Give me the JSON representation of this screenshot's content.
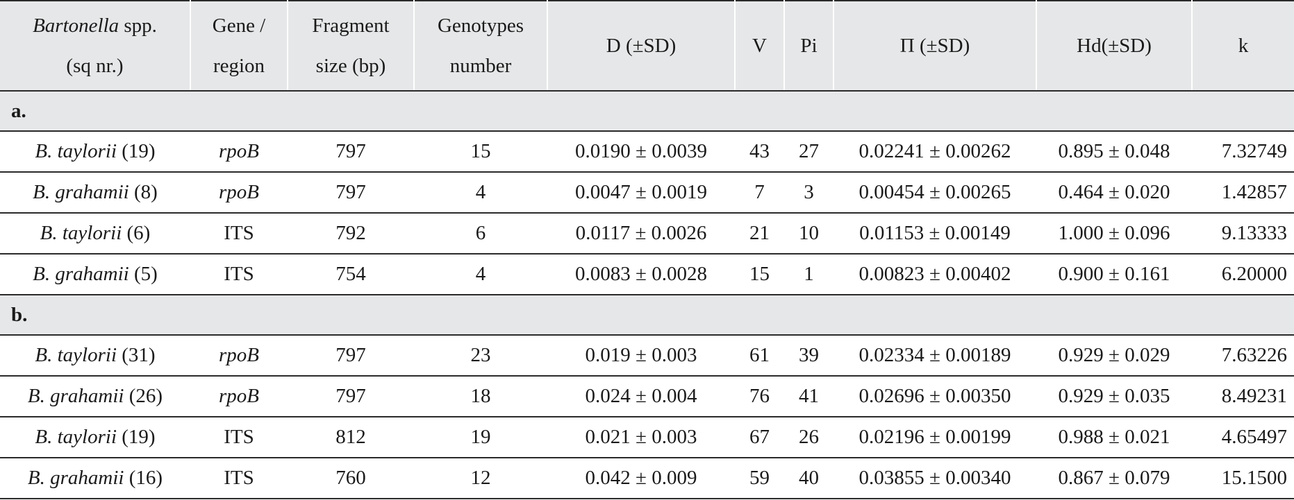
{
  "headers": {
    "species_italic": "Bartonella",
    "species_rest": " spp.",
    "species_line2": "(sq nr.)",
    "gene_line1": "Gene /",
    "gene_line2": "region",
    "frag_line1": "Fragment",
    "frag_line2": "size (bp)",
    "geno_line1": "Genotypes",
    "geno_line2": "number",
    "d": "D (±SD)",
    "v": "V",
    "pi": "Pi",
    "big_pi": "Π (±SD)",
    "hd": "Hd(±SD)",
    "k": "k"
  },
  "section_a": {
    "label": "a.",
    "rows": [
      {
        "species": "B. taylorii",
        "count": " (19)",
        "gene": "rpoB",
        "gene_italic": true,
        "frag": "797",
        "genotypes": "15",
        "d": "0.0190 ± 0.0039",
        "v": "43",
        "pi": "27",
        "big_pi": "0.02241 ± 0.00262",
        "hd": "0.895 ± 0.048",
        "k": "7.32749"
      },
      {
        "species": "B. grahamii",
        "count": " (8)",
        "gene": "rpoB",
        "gene_italic": true,
        "frag": "797",
        "genotypes": "4",
        "d": "0.0047 ± 0.0019",
        "v": "7",
        "pi": "3",
        "big_pi": "0.00454 ± 0.00265",
        "hd": "0.464 ± 0.020",
        "k": "1.42857"
      },
      {
        "species": "B. taylorii",
        "count": " (6)",
        "gene": "ITS",
        "gene_italic": false,
        "frag": "792",
        "genotypes": "6",
        "d": "0.0117 ± 0.0026",
        "v": "21",
        "pi": "10",
        "big_pi": "0.01153 ± 0.00149",
        "hd": "1.000 ± 0.096",
        "k": "9.13333"
      },
      {
        "species": "B. grahamii",
        "count": " (5)",
        "gene": "ITS",
        "gene_italic": false,
        "frag": "754",
        "genotypes": "4",
        "d": "0.0083 ± 0.0028",
        "v": "15",
        "pi": "1",
        "big_pi": "0.00823 ± 0.00402",
        "hd": "0.900 ± 0.161",
        "k": "6.20000"
      }
    ]
  },
  "section_b": {
    "label": "b.",
    "rows": [
      {
        "species": "B. taylorii",
        "count": " (31)",
        "gene": "rpoB",
        "gene_italic": true,
        "frag": "797",
        "genotypes": "23",
        "d": "0.019 ± 0.003",
        "v": "61",
        "pi": "39",
        "big_pi": "0.02334 ± 0.00189",
        "hd": "0.929 ± 0.029",
        "k": "7.63226"
      },
      {
        "species": "B. grahamii",
        "count": " (26)",
        "gene": "rpoB",
        "gene_italic": true,
        "frag": "797",
        "genotypes": "18",
        "d": "0.024 ± 0.004",
        "v": "76",
        "pi": "41",
        "big_pi": "0.02696 ± 0.00350",
        "hd": "0.929 ± 0.035",
        "k": "8.49231"
      },
      {
        "species": "B. taylorii",
        "count": " (19)",
        "gene": "ITS",
        "gene_italic": false,
        "frag": "812",
        "genotypes": "19",
        "d": "0.021 ± 0.003",
        "v": "67",
        "pi": "26",
        "big_pi": "0.02196 ± 0.00199",
        "hd": "0.988 ± 0.021",
        "k": "4.65497"
      },
      {
        "species": "B. grahamii",
        "count": " (16)",
        "gene": "ITS",
        "gene_italic": false,
        "frag": "760",
        "genotypes": "12",
        "d": "0.042 ± 0.009",
        "v": "59",
        "pi": "40",
        "big_pi": "0.03855 ± 0.00340",
        "hd": "0.867 ± 0.079",
        "k": "15.1500"
      }
    ]
  },
  "colors": {
    "header_background": "#e6e7e8",
    "rule": "#2a2a2a",
    "text": "#1a1a1a"
  }
}
